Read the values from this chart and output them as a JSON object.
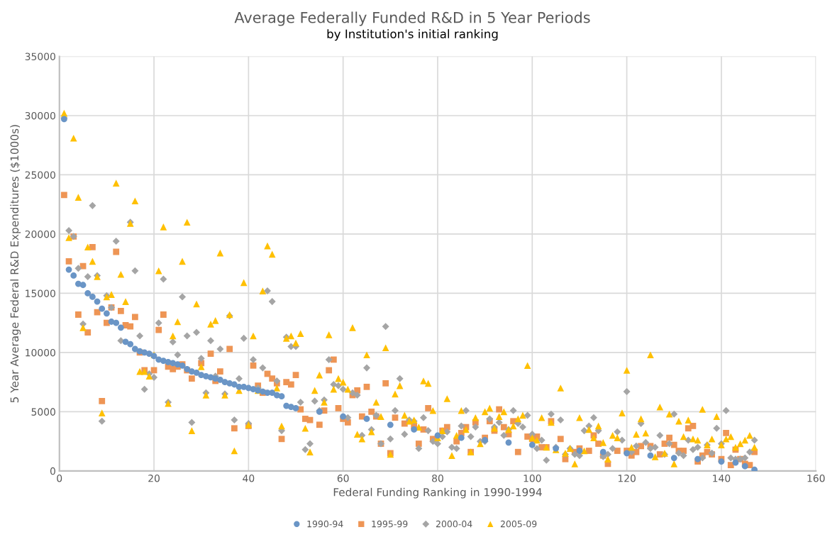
{
  "chart_data": {
    "type": "scatter",
    "title": "Average Federally Funded R&D in 5 Year Periods",
    "subtitle": "by Institution's initial ranking",
    "xlabel": "Federal Funding Ranking in 1990-1994",
    "ylabel": "5 Year Average Federal R&D Expenditures ($1000s)",
    "xlim": [
      0,
      160
    ],
    "xticks": [
      0,
      20,
      40,
      60,
      80,
      100,
      120,
      140,
      160
    ],
    "ylim": [
      0,
      35000
    ],
    "yticks": [
      0,
      5000,
      10000,
      15000,
      20000,
      25000,
      30000,
      35000
    ],
    "grid": true,
    "legend": "bottom",
    "x": [
      1,
      2,
      3,
      4,
      5,
      6,
      7,
      8,
      9,
      10,
      11,
      12,
      13,
      14,
      15,
      16,
      17,
      18,
      19,
      20,
      21,
      22,
      23,
      24,
      25,
      26,
      27,
      28,
      29,
      30,
      31,
      32,
      33,
      34,
      35,
      36,
      37,
      38,
      39,
      40,
      41,
      42,
      43,
      44,
      45,
      46,
      47,
      48,
      49,
      50,
      51,
      52,
      53,
      54,
      55,
      56,
      57,
      58,
      59,
      60,
      61,
      62,
      63,
      64,
      65,
      66,
      67,
      68,
      69,
      70,
      71,
      72,
      73,
      74,
      75,
      76,
      77,
      78,
      79,
      80,
      81,
      82,
      83,
      84,
      85,
      86,
      87,
      88,
      89,
      90,
      91,
      92,
      93,
      94,
      95,
      96,
      97,
      98,
      99,
      100,
      101,
      102,
      103,
      104,
      105,
      106,
      107,
      108,
      109,
      110,
      111,
      112,
      113,
      114,
      115,
      116,
      117,
      118,
      119,
      120,
      121,
      122,
      123,
      124,
      125,
      126,
      127,
      128,
      129,
      130,
      131,
      132,
      133,
      134,
      135,
      136,
      137,
      138,
      139,
      140,
      141,
      142,
      143,
      144,
      145,
      146,
      147
    ],
    "series": [
      {
        "name": "1990-94",
        "color": "#6a95c6",
        "marker": "circle",
        "x": [
          1,
          2,
          3,
          4,
          5,
          6,
          7,
          8,
          9,
          10,
          11,
          12,
          13,
          14,
          15,
          16,
          17,
          18,
          19,
          20,
          21,
          22,
          23,
          24,
          25,
          26,
          27,
          28,
          29,
          30,
          31,
          32,
          33,
          34,
          35,
          36,
          37,
          38,
          39,
          40,
          41,
          42,
          43,
          44,
          45,
          46,
          47,
          48,
          49,
          50,
          55,
          60,
          65,
          70,
          75,
          80,
          85,
          90,
          95,
          100,
          105,
          110,
          115,
          120,
          125,
          130,
          135,
          140,
          143,
          145,
          147
        ],
        "values": [
          29700,
          17000,
          16500,
          15800,
          15700,
          15000,
          14700,
          14300,
          13700,
          13300,
          12600,
          12500,
          12100,
          10900,
          10700,
          10300,
          10100,
          10000,
          9900,
          9700,
          9400,
          9300,
          9200,
          9100,
          9000,
          8900,
          8600,
          8400,
          8300,
          8100,
          8000,
          7900,
          7800,
          7700,
          7500,
          7400,
          7300,
          7100,
          7100,
          7000,
          6900,
          6800,
          6700,
          6600,
          6600,
          6400,
          6300,
          5500,
          5400,
          5300,
          5000,
          4600,
          4400,
          3900,
          3500,
          3000,
          2800,
          2600,
          2400,
          2200,
          1900,
          1700,
          1600,
          1500,
          1300,
          1100,
          1000,
          800,
          700,
          400,
          100
        ]
      },
      {
        "name": "1995-99",
        "color": "#ee9555",
        "marker": "square",
        "x": [
          1,
          2,
          3,
          4,
          5,
          6,
          7,
          8,
          9,
          10,
          11,
          12,
          13,
          14,
          15,
          16,
          17,
          18,
          20,
          21,
          22,
          23,
          24,
          25,
          26,
          27,
          28,
          30,
          32,
          33,
          34,
          36,
          37,
          40,
          41,
          42,
          43,
          44,
          45,
          46,
          47,
          48,
          49,
          50,
          51,
          52,
          53,
          55,
          56,
          57,
          58,
          59,
          60,
          61,
          62,
          63,
          64,
          65,
          66,
          67,
          68,
          69,
          70,
          71,
          73,
          75,
          76,
          77,
          78,
          79,
          81,
          82,
          84,
          85,
          86,
          87,
          88,
          90,
          91,
          92,
          93,
          94,
          95,
          96,
          97,
          99,
          100,
          101,
          102,
          103,
          104,
          106,
          107,
          109,
          110,
          112,
          113,
          114,
          115,
          116,
          118,
          120,
          121,
          122,
          123,
          125,
          127,
          128,
          129,
          130,
          131,
          132,
          133,
          134,
          135,
          136,
          137,
          138,
          140,
          141,
          142,
          143,
          144,
          145,
          146,
          147
        ],
        "values": [
          23300,
          17700,
          19800,
          13200,
          17300,
          11700,
          18900,
          13400,
          5900,
          12500,
          13800,
          18500,
          13500,
          12300,
          12200,
          13000,
          10000,
          8500,
          8500,
          11900,
          13200,
          8800,
          8600,
          8800,
          9000,
          8500,
          7800,
          9100,
          9900,
          7600,
          8400,
          10300,
          3600,
          3800,
          8900,
          7200,
          6600,
          8200,
          7800,
          7400,
          2700,
          7500,
          7300,
          8100,
          5200,
          4400,
          4300,
          3900,
          5100,
          8500,
          9400,
          5300,
          4400,
          4100,
          6400,
          6800,
          4600,
          7100,
          5000,
          4600,
          2300,
          7400,
          1500,
          4500,
          4000,
          3800,
          2300,
          3500,
          5300,
          2700,
          3400,
          3700,
          2500,
          3200,
          3700,
          1600,
          4100,
          2800,
          4200,
          3400,
          5200,
          3700,
          3100,
          4200,
          1600,
          2900,
          2700,
          2900,
          2000,
          2000,
          4200,
          2700,
          1000,
          1600,
          1900,
          1700,
          3000,
          2300,
          1300,
          600,
          1700,
          1700,
          1300,
          1600,
          2100,
          2100,
          1400,
          2300,
          2800,
          2200,
          1700,
          1700,
          3600,
          3800,
          800,
          1300,
          1600,
          1400,
          1000,
          3200,
          500,
          1800,
          1000,
          600,
          500,
          1600
        ]
      },
      {
        "name": "2000-04",
        "color": "#a5a5a5",
        "marker": "diamond",
        "values": [
          29800,
          20300,
          19800,
          17100,
          12400,
          16400,
          22400,
          16500,
          4200,
          14800,
          13800,
          19400,
          11000,
          null,
          21000,
          16900,
          11400,
          6900,
          8200,
          7900,
          12500,
          16200,
          5800,
          10900,
          9800,
          14700,
          11400,
          4100,
          11700,
          9500,
          6600,
          11000,
          8000,
          10300,
          6500,
          13100,
          4300,
          7800,
          11200,
          4000,
          9400,
          7000,
          8700,
          15200,
          14300,
          7600,
          3400,
          11300,
          10500,
          10500,
          5800,
          1800,
          2300,
          5900,
          5100,
          6000,
          9400,
          7300,
          7200,
          6900,
          4500,
          6600,
          6400,
          3000,
          8700,
          3500,
          4700,
          2300,
          12200,
          2700,
          5100,
          7800,
          3100,
          4300,
          4200,
          1900,
          4500,
          3400,
          2500,
          2300,
          2900,
          3300,
          2000,
          1900,
          3800,
          5100,
          2900,
          3700,
          2500,
          2500,
          4400,
          3700,
          4100,
          3000,
          3500,
          5100,
          4000,
          3700,
          4700,
          3100,
          1900,
          2600,
          900,
          4800,
          2000,
          4300,
          1400,
          1900,
          1400,
          1300,
          3400,
          3800,
          4500,
          3400,
          1200,
          1400,
          1900,
          3300,
          2600,
          6700,
          1600,
          2100,
          4000,
          2400,
          1900,
          2000,
          3000,
          1400,
          2300,
          4800,
          1500,
          1300,
          2600,
          1800,
          2000,
          1100,
          2200,
          1500,
          3600,
          2300,
          5100,
          1100,
          1000,
          1000,
          1100,
          1600,
          2600
        ]
      },
      {
        "name": "2005-09",
        "color": "#ffc000",
        "marker": "triangle",
        "values": [
          30200,
          19700,
          28100,
          23100,
          12100,
          18900,
          17700,
          16400,
          4900,
          14700,
          14900,
          24300,
          16600,
          14300,
          20900,
          22800,
          8400,
          8400,
          8000,
          9800,
          16900,
          20600,
          5700,
          11400,
          12600,
          17700,
          21000,
          3400,
          14100,
          8800,
          6400,
          12400,
          12700,
          18400,
          6400,
          13200,
          1700,
          6800,
          15900,
          3900,
          11400,
          6800,
          15200,
          19000,
          18300,
          7000,
          3800,
          11200,
          11400,
          10800,
          11600,
          3600,
          1600,
          6800,
          8100,
          5800,
          11500,
          6900,
          7800,
          7500,
          6900,
          12100,
          3100,
          2700,
          9800,
          3300,
          5800,
          4600,
          10400,
          1400,
          6500,
          7200,
          4700,
          4200,
          4300,
          3700,
          7600,
          7400,
          5100,
          2800,
          3400,
          6100,
          1300,
          3000,
          5100,
          3500,
          1600,
          4500,
          2300,
          5000,
          5300,
          3600,
          4600,
          5000,
          3500,
          3800,
          4400,
          4700,
          8900,
          2800,
          2600,
          4500,
          2000,
          4100,
          1800,
          7000,
          1500,
          1900,
          600,
          4500,
          1700,
          3500,
          2800,
          3800,
          2400,
          1000,
          3000,
          2800,
          4900,
          8500,
          2000,
          3100,
          4400,
          3200,
          9800,
          1200,
          5400,
          1500,
          4800,
          600,
          4200,
          2900,
          4300,
          2700,
          2600,
          5200,
          2200,
          2700,
          4600,
          2200,
          2700,
          2900,
          2000,
          2300,
          2600,
          3000,
          2000
        ]
      }
    ]
  }
}
